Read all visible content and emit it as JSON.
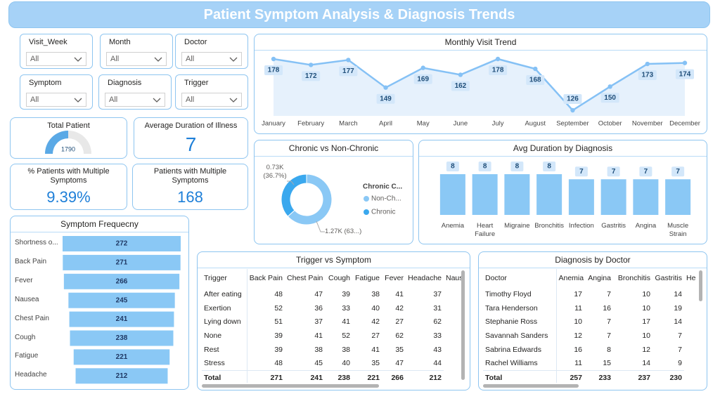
{
  "header": {
    "title": "Patient Symptom Analysis & Diagnosis Trends"
  },
  "filters": [
    {
      "label": "Visit_Week",
      "value": "All"
    },
    {
      "label": "Month",
      "value": "All"
    },
    {
      "label": "Doctor",
      "value": "All"
    },
    {
      "label": "Symptom",
      "value": "All"
    },
    {
      "label": "Diagnosis",
      "value": "All"
    },
    {
      "label": "Trigger",
      "value": "All"
    }
  ],
  "kpis": {
    "total_patient": {
      "label": "Total Patient",
      "value": 1790
    },
    "avg_duration": {
      "label": "Average Duration of Illness",
      "value": 7
    },
    "pct_multiple": {
      "label": "% Patients with Multiple Symptoms",
      "value": "9.39%"
    },
    "multiple": {
      "label": "Patients with Multiple Symptoms",
      "value": 168
    }
  },
  "chart_data": [
    {
      "type": "line",
      "title": "Monthly Visit Trend",
      "categories": [
        "January",
        "February",
        "March",
        "April",
        "May",
        "June",
        "July",
        "August",
        "September",
        "October",
        "November",
        "December"
      ],
      "values": [
        178,
        172,
        177,
        149,
        169,
        162,
        178,
        168,
        126,
        150,
        173,
        174
      ],
      "color": "#85c1f5"
    },
    {
      "type": "pie",
      "title": "Chronic vs Non-Chronic",
      "legend_title": "Chronic C...",
      "categories": [
        "Non-Ch...",
        "Chronic"
      ],
      "values": [
        1266,
        734
      ],
      "value_labels": [
        "1.27K (63...)",
        "0.73K (36.7%)"
      ],
      "colors": [
        "#8ac8f5",
        "#3aa8ee"
      ]
    },
    {
      "type": "bar",
      "title": "Avg Duration by Diagnosis",
      "categories": [
        "Anemia",
        "Heart Failure",
        "Migraine",
        "Bronchitis",
        "Infection",
        "Gastritis",
        "Angina",
        "Muscle Strain"
      ],
      "values": [
        8,
        8,
        8,
        8,
        7,
        7,
        7,
        7
      ],
      "color": "#8ac8f5"
    },
    {
      "type": "funnel",
      "title": "Symptom Frequecny",
      "categories": [
        "Shortness o...",
        "Back Pain",
        "Fever",
        "Nausea",
        "Chest Pain",
        "Cough",
        "Fatigue",
        "Headache"
      ],
      "values": [
        272,
        271,
        266,
        245,
        241,
        238,
        221,
        212
      ],
      "color": "#8ac8f5"
    }
  ],
  "tables": [
    {
      "title": "Trigger vs Symptom",
      "columns": [
        "Trigger",
        "Back Pain",
        "Chest Pain",
        "Cough",
        "Fatigue",
        "Fever",
        "Headache",
        "Naus"
      ],
      "rows": [
        [
          "After eating",
          48,
          47,
          39,
          38,
          41,
          37
        ],
        [
          "Exertion",
          52,
          36,
          33,
          40,
          42,
          31
        ],
        [
          "Lying down",
          51,
          37,
          41,
          42,
          27,
          62
        ],
        [
          "None",
          39,
          41,
          52,
          27,
          62,
          33
        ],
        [
          "Rest",
          39,
          38,
          38,
          41,
          35,
          43
        ],
        [
          "Stress",
          48,
          45,
          40,
          35,
          47,
          44
        ]
      ],
      "total": [
        "Total",
        271,
        241,
        238,
        221,
        266,
        212
      ]
    },
    {
      "title": "Diagnosis by Doctor",
      "columns": [
        "Doctor",
        "Anemia",
        "Angina",
        "Bronchitis",
        "Gastritis",
        "He"
      ],
      "rows": [
        [
          "Timothy Floyd",
          17,
          7,
          10,
          14
        ],
        [
          "Tara Henderson",
          11,
          16,
          10,
          19
        ],
        [
          "Stephanie Ross",
          10,
          7,
          17,
          14
        ],
        [
          "Savannah Sanders",
          12,
          7,
          10,
          7
        ],
        [
          "Sabrina Edwards",
          16,
          8,
          12,
          7
        ],
        [
          "Rachel Williams",
          11,
          15,
          14,
          9
        ]
      ],
      "total": [
        "Total",
        257,
        233,
        237,
        230
      ]
    }
  ]
}
